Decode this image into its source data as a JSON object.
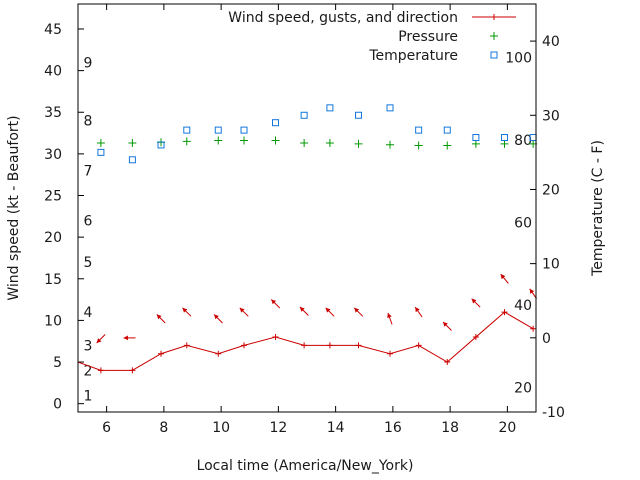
{
  "chart_data": {
    "type": "line",
    "xlabel": "Local time (America/New_York)",
    "ylabel_left": "Wind speed (kt - Beaufort)",
    "ylabel_right": "Temperature (C - F)",
    "xlim": [
      5,
      21
    ],
    "x_ticks": [
      6,
      8,
      10,
      12,
      14,
      16,
      18,
      20
    ],
    "ylim_left": [
      -1,
      48
    ],
    "y_left_ticks": [
      0,
      5,
      10,
      15,
      20,
      25,
      30,
      35,
      40,
      45
    ],
    "ylim_right": [
      -10,
      45
    ],
    "y_right_ticks": [
      -10,
      0,
      10,
      20,
      30,
      40
    ],
    "beaufort_labels": [
      {
        "label": "1",
        "kt": 1
      },
      {
        "label": "2",
        "kt": 4
      },
      {
        "label": "3",
        "kt": 7
      },
      {
        "label": "4",
        "kt": 11
      },
      {
        "label": "5",
        "kt": 17
      },
      {
        "label": "6",
        "kt": 22
      },
      {
        "label": "7",
        "kt": 28
      },
      {
        "label": "8",
        "kt": 34
      },
      {
        "label": "9",
        "kt": 41
      }
    ],
    "fahrenheit_labels": [
      {
        "label": "20",
        "celsius": -6.67
      },
      {
        "label": "40",
        "celsius": 4.44
      },
      {
        "label": "60",
        "celsius": 15.56
      },
      {
        "label": "80",
        "celsius": 26.67
      },
      {
        "label": "100",
        "celsius": 37.78
      }
    ],
    "legend": [
      {
        "name": "Wind speed, gusts, and direction",
        "color": "#cc0000",
        "marker": "line-plus"
      },
      {
        "name": "Pressure",
        "color": "#009900",
        "marker": "plus"
      },
      {
        "name": "Temperature",
        "color": "#1177dd",
        "marker": "open-square"
      }
    ],
    "series": [
      {
        "name": "Wind speed, gusts, and direction",
        "axis": "left",
        "color": "#cc0000",
        "x": [
          5,
          5.8,
          6.9,
          7.9,
          8.8,
          9.9,
          10.8,
          11.9,
          12.9,
          13.8,
          14.8,
          15.9,
          16.9,
          17.9,
          18.9,
          19.9,
          20.9
        ],
        "values": [
          5,
          4,
          4,
          6,
          7,
          6,
          7,
          8,
          7,
          7,
          7,
          6,
          7,
          5,
          8,
          11,
          9
        ]
      },
      {
        "name": "Wind direction arrows",
        "axis": "left",
        "color": "#cc0000",
        "x": [
          5.8,
          6.8,
          7.9,
          8.8,
          9.9,
          10.8,
          11.9,
          12.9,
          13.8,
          14.8,
          15.9,
          16.9,
          17.9,
          18.9,
          19.9,
          20.9
        ],
        "values": [
          7.8,
          7.9,
          10.2,
          11.0,
          10.2,
          11.0,
          12.0,
          11.1,
          11.0,
          11.0,
          10.2,
          11.0,
          9.3,
          12.1,
          15.0,
          13.2
        ],
        "direction_deg": [
          225,
          180,
          135,
          135,
          135,
          135,
          135,
          135,
          135,
          135,
          110,
          125,
          135,
          135,
          130,
          125
        ]
      },
      {
        "name": "Pressure",
        "axis": "left",
        "color": "#009900",
        "x": [
          5.8,
          6.9,
          7.9,
          8.8,
          9.9,
          10.8,
          11.9,
          12.9,
          13.8,
          14.8,
          15.9,
          16.9,
          17.9,
          18.9,
          19.9,
          20.9
        ],
        "values": [
          31.3,
          31.3,
          31.4,
          31.5,
          31.6,
          31.6,
          31.6,
          31.3,
          31.3,
          31.2,
          31.1,
          31.0,
          31.0,
          31.2,
          31.2,
          31.2
        ]
      },
      {
        "name": "Temperature",
        "axis": "right",
        "color": "#1177dd",
        "x": [
          5.8,
          6.9,
          7.9,
          8.8,
          9.9,
          10.8,
          11.9,
          12.9,
          13.8,
          14.8,
          15.9,
          16.9,
          17.9,
          18.9,
          19.9,
          20.9
        ],
        "values": [
          25,
          24,
          26,
          28,
          28,
          28,
          29,
          30,
          31,
          30,
          31,
          28,
          28,
          27,
          27,
          27
        ]
      }
    ]
  }
}
